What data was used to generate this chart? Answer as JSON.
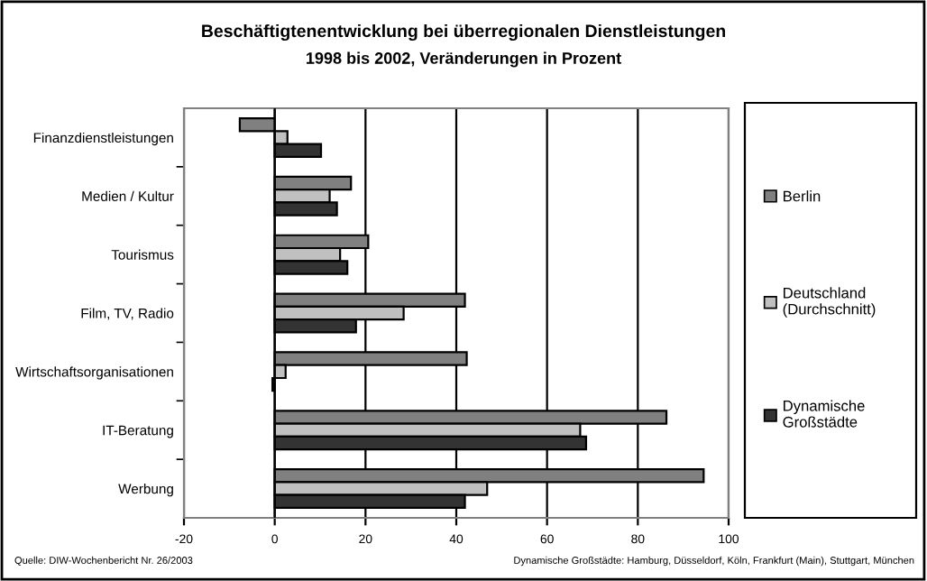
{
  "chart_data": {
    "type": "bar",
    "orientation": "horizontal",
    "title": "Beschäftigtenentwicklung bei überregionalen Dienstleistungen",
    "subtitle": "1998 bis 2002, Veränderungen in Prozent",
    "categories": [
      "Finanzdienstleistungen",
      "Medien / Kultur",
      "Tourismus",
      "Film, TV, Radio",
      "Wirtschaftsorganisationen",
      "IT-Beratung",
      "Werbung"
    ],
    "series": [
      {
        "name": "Berlin",
        "color": "#808080",
        "values": [
          -7.7,
          16.8,
          20.6,
          41.9,
          42.3,
          86.3,
          94.5
        ]
      },
      {
        "name": "Deutschland (Durchschnitt)",
        "color": "#c0c0c0",
        "values": [
          2.8,
          12.1,
          14.4,
          28.4,
          2.4,
          67.3,
          46.8
        ]
      },
      {
        "name": "Dynamische Großstädte",
        "color": "#333333",
        "values": [
          10.2,
          13.7,
          16.0,
          17.9,
          -0.5,
          68.6,
          41.9
        ]
      }
    ],
    "xlim": [
      -20,
      100
    ],
    "xticks": [
      -20,
      0,
      20,
      40,
      60,
      80,
      100
    ],
    "grid": "x",
    "legend": "right",
    "annotations": [
      "Quelle: DIW-Wochenbericht Nr. 26/2003",
      "Dynamische Großstädte: Hamburg, Düsseldorf, Köln, Frankfurt (Main), Stuttgart, München"
    ]
  }
}
